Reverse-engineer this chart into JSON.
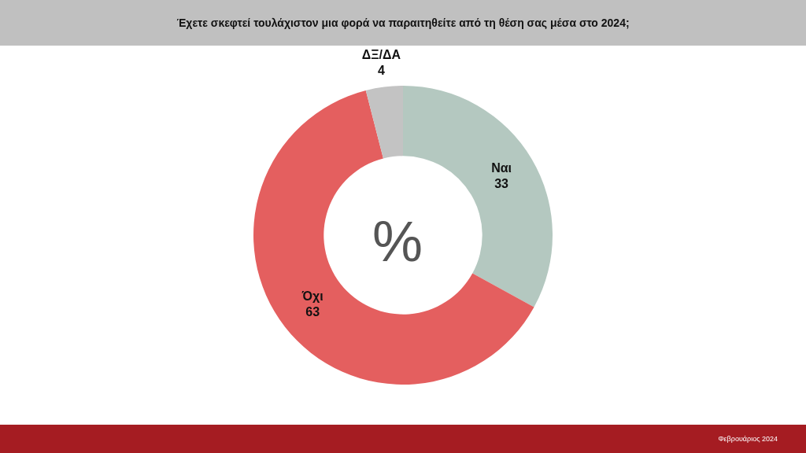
{
  "chart_data": {
    "type": "donut",
    "title": "Έχετε σκεφτεί τουλάχιστον μια φορά να παραιτηθείτε από τη θέση σας μέσα στο 2024;",
    "categories": [
      "Ναι",
      "Όχι",
      "ΔΞ/ΔΑ"
    ],
    "values": [
      33,
      63,
      4
    ],
    "colors": [
      "#b4c8c0",
      "#e45f5f",
      "#c3c3c3"
    ],
    "data_labels": true,
    "legend": false,
    "annotations": [
      "%",
      "Φεβρουάριος 2024"
    ]
  }
}
